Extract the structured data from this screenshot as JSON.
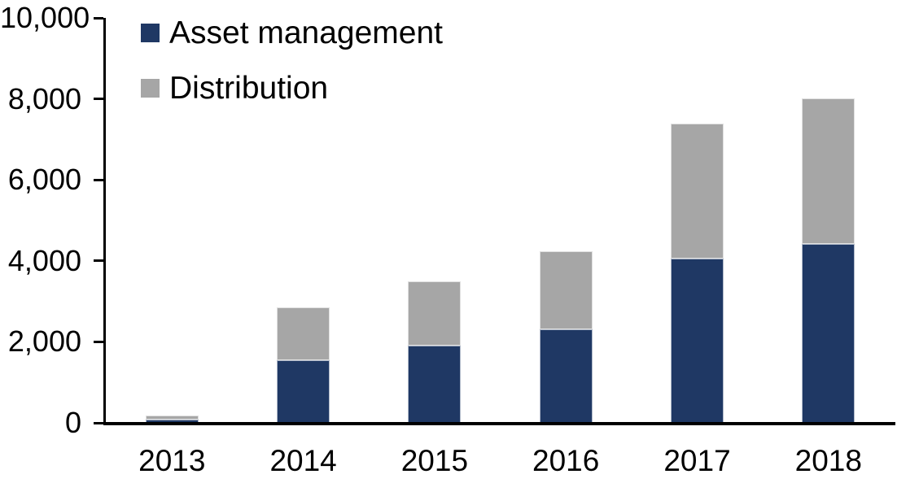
{
  "chart_data": {
    "type": "bar",
    "stacked": true,
    "title": "",
    "xlabel": "",
    "ylabel": "",
    "categories": [
      "2013",
      "2014",
      "2015",
      "2016",
      "2017",
      "2018"
    ],
    "series": [
      {
        "name": "Asset management",
        "color": "#1f3864",
        "values": [
          80,
          1550,
          1900,
          2320,
          4050,
          4420
        ]
      },
      {
        "name": "Distribution",
        "color": "#a6a6a6",
        "values": [
          110,
          1300,
          1600,
          1930,
          3350,
          3600
        ]
      }
    ],
    "totals": [
      190,
      2850,
      3500,
      4250,
      7400,
      8020
    ],
    "ylim": [
      0,
      10000
    ],
    "y_ticks": [
      {
        "value": 0,
        "label": "0"
      },
      {
        "value": 2000,
        "label": "2,000"
      },
      {
        "value": 4000,
        "label": "4,000"
      },
      {
        "value": 6000,
        "label": "6,000"
      },
      {
        "value": 8000,
        "label": "8,000"
      },
      {
        "value": 10000,
        "label": "10,000"
      }
    ],
    "grid": false,
    "legend_position": "top-left",
    "axis_color": "#000000",
    "background_color": "#ffffff"
  }
}
